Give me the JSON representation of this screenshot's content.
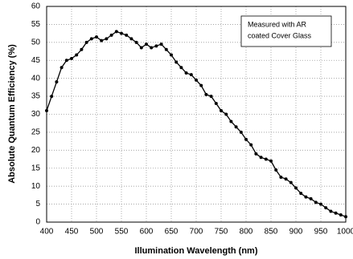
{
  "chart_data": {
    "type": "line",
    "xlabel": "Illumination Wavelength (nm)",
    "ylabel": "Absolute Quantum Efficiency (%)",
    "annotation": [
      "Measured with AR",
      "coated Cover Glass"
    ],
    "x": [
      400,
      410,
      420,
      430,
      440,
      450,
      460,
      470,
      480,
      490,
      500,
      510,
      520,
      530,
      540,
      550,
      560,
      570,
      580,
      590,
      600,
      610,
      620,
      630,
      640,
      650,
      660,
      670,
      680,
      690,
      700,
      710,
      720,
      730,
      740,
      750,
      760,
      770,
      780,
      790,
      800,
      810,
      820,
      830,
      840,
      850,
      860,
      870,
      880,
      890,
      900,
      910,
      920,
      930,
      940,
      950,
      960,
      970,
      980,
      990,
      1000
    ],
    "series": [
      {
        "color": "#000000",
        "values": [
          31,
          35,
          39,
          43,
          45,
          45.5,
          46.5,
          48,
          50,
          51,
          51.5,
          50.5,
          51,
          52,
          53,
          52.5,
          52,
          51,
          50,
          48.5,
          49.5,
          48.5,
          49,
          49.5,
          48,
          46.5,
          44.5,
          43,
          41.5,
          41,
          39.5,
          38,
          35.5,
          35,
          33,
          31,
          30,
          28,
          26.5,
          25,
          23,
          21.5,
          19,
          18,
          17.5,
          17,
          14.5,
          12.5,
          12,
          11,
          9.5,
          8,
          7,
          6.5,
          5.5,
          5,
          4,
          3,
          2.5,
          2,
          1.5
        ]
      }
    ],
    "xlim": [
      400,
      1000
    ],
    "xticks": [
      400,
      450,
      500,
      550,
      600,
      650,
      700,
      750,
      800,
      850,
      900,
      950,
      1000
    ],
    "ylim": [
      0,
      60
    ],
    "yticks": [
      0,
      5,
      10,
      15,
      20,
      25,
      30,
      35,
      40,
      45,
      50,
      55,
      60
    ],
    "grid": true
  }
}
